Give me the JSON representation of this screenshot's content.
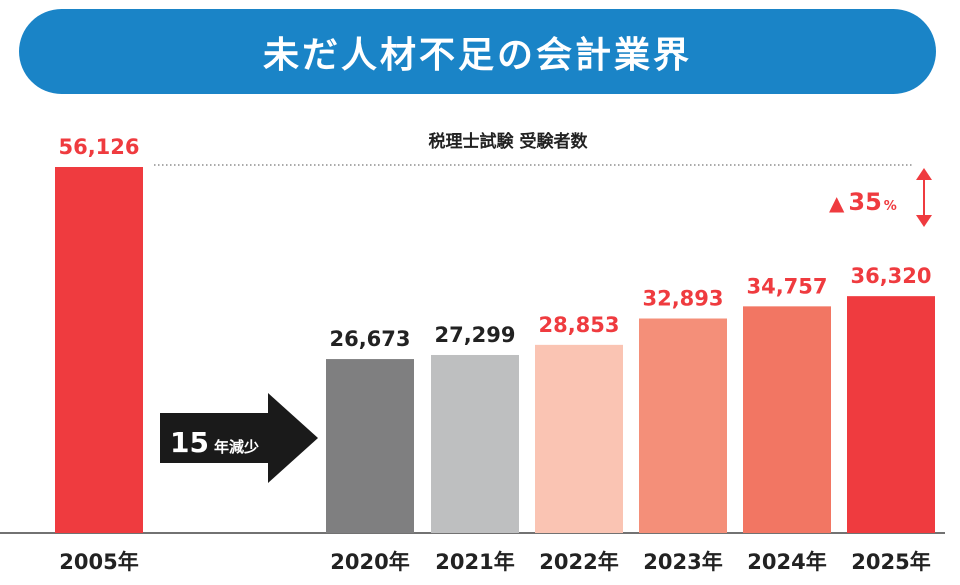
{
  "title": "未だ人材不足の会計業界",
  "chart_data": {
    "type": "bar",
    "subtitle": "税理士試験 受験者数",
    "categories": [
      "2005年",
      "2020年",
      "2021年",
      "2022年",
      "2023年",
      "2024年",
      "2025年"
    ],
    "values": [
      56126,
      26673,
      27299,
      28853,
      32893,
      34757,
      36320
    ],
    "value_labels": [
      "56,126",
      "26,673",
      "27,299",
      "28,853",
      "32,893",
      "34,757",
      "36,320"
    ],
    "bar_colors": [
      "#ef3b3f",
      "#7f7f80",
      "#bebfc0",
      "#fac4b3",
      "#f48f79",
      "#f27663",
      "#ef3b3f"
    ],
    "label_colors": [
      "#ef3b3f",
      "#222222",
      "#222222",
      "#ef3b3f",
      "#ef3b3f",
      "#ef3b3f",
      "#ef3b3f"
    ],
    "ylim": [
      0,
      56126
    ],
    "xlabel": "",
    "ylabel": "",
    "annotations": {
      "decrease": {
        "number": "15",
        "unit": "年減少"
      },
      "increase": {
        "symbol": "▲",
        "value": "35",
        "unit": "%"
      }
    },
    "colors": {
      "accent": "#ef3b3f",
      "dark": "#222222",
      "arrow": "#1a1a1a"
    }
  }
}
